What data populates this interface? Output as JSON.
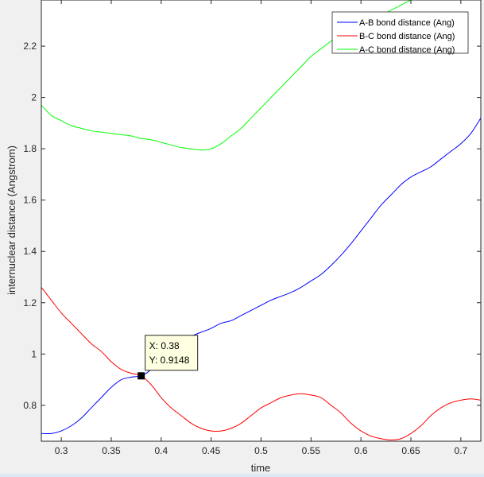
{
  "chart_data": {
    "type": "line",
    "title": "",
    "xlabel": "time",
    "ylabel": "internuclear distance (Angstrom)",
    "xlim": [
      0.28,
      0.72
    ],
    "ylim": [
      0.66,
      2.38
    ],
    "xticks": [
      0.3,
      0.35,
      0.4,
      0.45,
      0.5,
      0.55,
      0.6,
      0.65,
      0.7
    ],
    "xtick_labels": [
      "0.3",
      "0.35",
      "0.4",
      "0.45",
      "0.5",
      "0.55",
      "0.6",
      "0.65",
      "0.7"
    ],
    "yticks": [
      0.8,
      1.0,
      1.2,
      1.4,
      1.6,
      1.8,
      2.0,
      2.2
    ],
    "ytick_labels": [
      "0.8",
      "1",
      "1.2",
      "1.4",
      "1.6",
      "1.8",
      "2",
      "2.2"
    ],
    "grid": false,
    "legend_position": "top-right",
    "series": [
      {
        "name": "A-B bond distance (Ang)",
        "color": "#0000ff",
        "x": [
          0.28,
          0.29,
          0.3,
          0.31,
          0.32,
          0.33,
          0.34,
          0.35,
          0.36,
          0.37,
          0.38,
          0.39,
          0.4,
          0.41,
          0.42,
          0.43,
          0.44,
          0.45,
          0.46,
          0.47,
          0.48,
          0.49,
          0.5,
          0.51,
          0.52,
          0.53,
          0.54,
          0.55,
          0.56,
          0.57,
          0.58,
          0.59,
          0.6,
          0.61,
          0.62,
          0.63,
          0.64,
          0.65,
          0.66,
          0.67,
          0.68,
          0.69,
          0.7,
          0.71,
          0.72
        ],
        "y": [
          0.69,
          0.69,
          0.7,
          0.72,
          0.75,
          0.79,
          0.83,
          0.87,
          0.9,
          0.91,
          0.915,
          0.94,
          0.99,
          1.04,
          1.06,
          1.07,
          1.085,
          1.1,
          1.12,
          1.13,
          1.15,
          1.17,
          1.19,
          1.21,
          1.225,
          1.24,
          1.26,
          1.285,
          1.31,
          1.345,
          1.385,
          1.43,
          1.48,
          1.53,
          1.58,
          1.62,
          1.66,
          1.69,
          1.71,
          1.73,
          1.76,
          1.79,
          1.82,
          1.86,
          1.92
        ]
      },
      {
        "name": "B-C bond distance (Ang)",
        "color": "#ff0000",
        "x": [
          0.28,
          0.29,
          0.3,
          0.31,
          0.32,
          0.33,
          0.34,
          0.35,
          0.36,
          0.37,
          0.38,
          0.39,
          0.4,
          0.41,
          0.42,
          0.43,
          0.44,
          0.45,
          0.46,
          0.47,
          0.48,
          0.49,
          0.5,
          0.51,
          0.52,
          0.53,
          0.54,
          0.55,
          0.56,
          0.57,
          0.58,
          0.59,
          0.6,
          0.61,
          0.62,
          0.63,
          0.64,
          0.65,
          0.66,
          0.67,
          0.68,
          0.69,
          0.7,
          0.71,
          0.72
        ],
        "y": [
          1.26,
          1.21,
          1.16,
          1.12,
          1.08,
          1.04,
          1.01,
          0.97,
          0.94,
          0.925,
          0.915,
          0.88,
          0.83,
          0.79,
          0.76,
          0.73,
          0.71,
          0.7,
          0.7,
          0.71,
          0.73,
          0.76,
          0.79,
          0.81,
          0.83,
          0.84,
          0.845,
          0.84,
          0.83,
          0.8,
          0.77,
          0.73,
          0.7,
          0.68,
          0.67,
          0.665,
          0.67,
          0.69,
          0.72,
          0.76,
          0.79,
          0.81,
          0.82,
          0.825,
          0.82
        ]
      },
      {
        "name": "A-C bond distance (Ang)",
        "color": "#00ff00",
        "x": [
          0.28,
          0.29,
          0.3,
          0.31,
          0.32,
          0.33,
          0.34,
          0.35,
          0.36,
          0.37,
          0.38,
          0.39,
          0.4,
          0.41,
          0.42,
          0.43,
          0.44,
          0.45,
          0.46,
          0.47,
          0.48,
          0.49,
          0.5,
          0.51,
          0.52,
          0.53,
          0.54,
          0.55,
          0.56,
          0.57,
          0.58,
          0.59,
          0.6,
          0.61,
          0.62,
          0.63,
          0.64,
          0.65
        ],
        "y": [
          1.97,
          1.93,
          1.91,
          1.89,
          1.88,
          1.87,
          1.865,
          1.86,
          1.855,
          1.85,
          1.84,
          1.835,
          1.825,
          1.815,
          1.805,
          1.8,
          1.795,
          1.8,
          1.82,
          1.85,
          1.88,
          1.92,
          1.96,
          2.0,
          2.04,
          2.08,
          2.12,
          2.16,
          2.19,
          2.22,
          2.25,
          2.27,
          2.29,
          2.31,
          2.32,
          2.34,
          2.36,
          2.38
        ]
      }
    ],
    "datatip": {
      "x": 0.38,
      "y": 0.9148,
      "x_text": "X: 0.38",
      "y_text": "Y: 0.9148"
    }
  }
}
